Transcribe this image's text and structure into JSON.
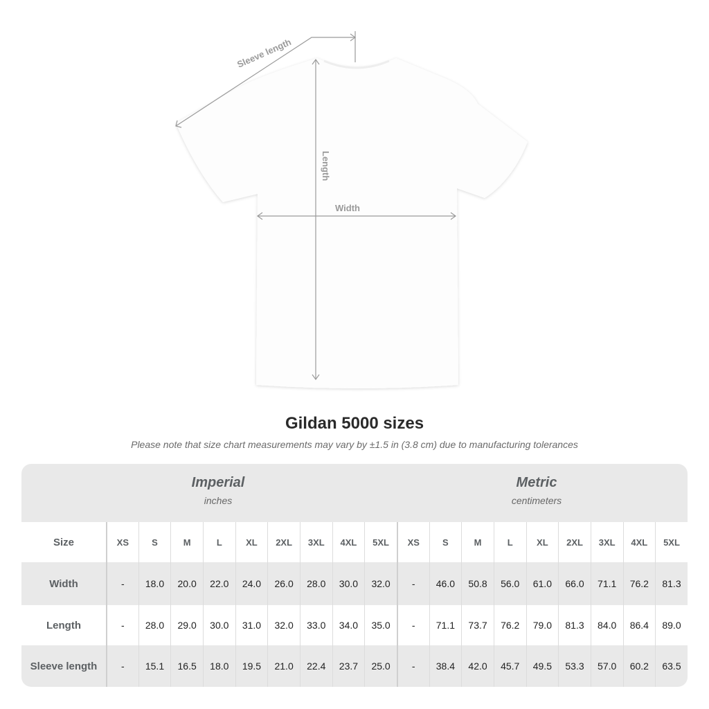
{
  "diagram": {
    "sleeve_label": "Sleeve length",
    "length_label": "Length",
    "width_label": "Width"
  },
  "title": "Gildan 5000 sizes",
  "note": "Please note that size chart measurements may vary by ±1.5 in (3.8 cm) due to manufacturing tolerances",
  "table": {
    "imperial": {
      "name": "Imperial",
      "unit": "inches"
    },
    "metric": {
      "name": "Metric",
      "unit": "centimeters"
    },
    "size_label": "Size",
    "sizes": [
      "XS",
      "S",
      "M",
      "L",
      "XL",
      "2XL",
      "3XL",
      "4XL",
      "5XL"
    ],
    "rows": [
      {
        "label": "Width",
        "imperial": [
          "-",
          "18.0",
          "20.0",
          "22.0",
          "24.0",
          "26.0",
          "28.0",
          "30.0",
          "32.0"
        ],
        "metric": [
          "-",
          "46.0",
          "50.8",
          "56.0",
          "61.0",
          "66.0",
          "71.1",
          "76.2",
          "81.3"
        ]
      },
      {
        "label": "Length",
        "imperial": [
          "-",
          "28.0",
          "29.0",
          "30.0",
          "31.0",
          "32.0",
          "33.0",
          "34.0",
          "35.0"
        ],
        "metric": [
          "-",
          "71.1",
          "73.7",
          "76.2",
          "79.0",
          "81.3",
          "84.0",
          "86.4",
          "89.0"
        ]
      },
      {
        "label": "Sleeve length",
        "imperial": [
          "-",
          "15.1",
          "16.5",
          "18.0",
          "19.5",
          "21.0",
          "22.4",
          "23.7",
          "25.0"
        ],
        "metric": [
          "-",
          "38.4",
          "42.0",
          "45.7",
          "49.5",
          "53.3",
          "57.0",
          "60.2",
          "63.5"
        ]
      }
    ]
  },
  "colors": {
    "header_bg": "#e9e9e9",
    "label_text": "#5c6063",
    "measure_line": "#9a9a9a"
  }
}
